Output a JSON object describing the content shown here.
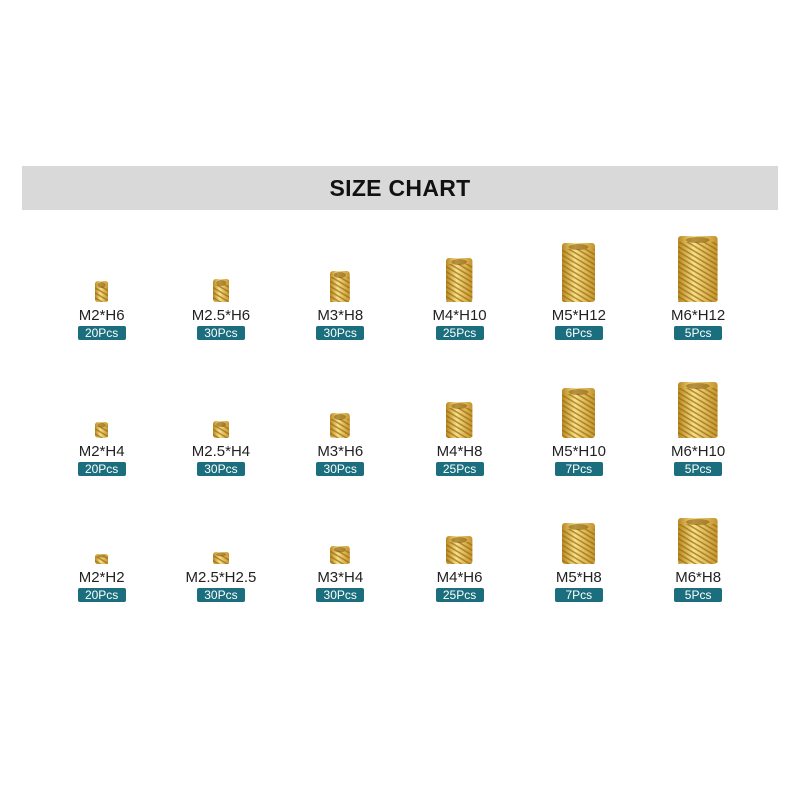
{
  "title": "SIZE CHART",
  "colors": {
    "badge": "#1b6e7e",
    "brass": "#d9b04a",
    "banner": "#d9d9d9"
  },
  "rows": [
    {
      "items": [
        {
          "label": "M2*H6",
          "qty": "20Pcs",
          "m": 2,
          "h": 6
        },
        {
          "label": "M2.5*H6",
          "qty": "30Pcs",
          "m": 2.5,
          "h": 6
        },
        {
          "label": "M3*H8",
          "qty": "30Pcs",
          "m": 3,
          "h": 8
        },
        {
          "label": "M4*H10",
          "qty": "25Pcs",
          "m": 4,
          "h": 10
        },
        {
          "label": "M5*H12",
          "qty": "6Pcs",
          "m": 5,
          "h": 12
        },
        {
          "label": "M6*H12",
          "qty": "5Pcs",
          "m": 6,
          "h": 12
        }
      ]
    },
    {
      "items": [
        {
          "label": "M2*H4",
          "qty": "20Pcs",
          "m": 2,
          "h": 4
        },
        {
          "label": "M2.5*H4",
          "qty": "30Pcs",
          "m": 2.5,
          "h": 4
        },
        {
          "label": "M3*H6",
          "qty": "30Pcs",
          "m": 3,
          "h": 6
        },
        {
          "label": "M4*H8",
          "qty": "25Pcs",
          "m": 4,
          "h": 8
        },
        {
          "label": "M5*H10",
          "qty": "7Pcs",
          "m": 5,
          "h": 10
        },
        {
          "label": "M6*H10",
          "qty": "5Pcs",
          "m": 6,
          "h": 10
        }
      ]
    },
    {
      "items": [
        {
          "label": "M2*H2",
          "qty": "20Pcs",
          "m": 2,
          "h": 2
        },
        {
          "label": "M2.5*H2.5",
          "qty": "30Pcs",
          "m": 2.5,
          "h": 2.5
        },
        {
          "label": "M3*H4",
          "qty": "30Pcs",
          "m": 3,
          "h": 4
        },
        {
          "label": "M4*H6",
          "qty": "25Pcs",
          "m": 4,
          "h": 6
        },
        {
          "label": "M5*H8",
          "qty": "7Pcs",
          "m": 5,
          "h": 8
        },
        {
          "label": "M6*H8",
          "qty": "5Pcs",
          "m": 6,
          "h": 8
        }
      ]
    }
  ]
}
